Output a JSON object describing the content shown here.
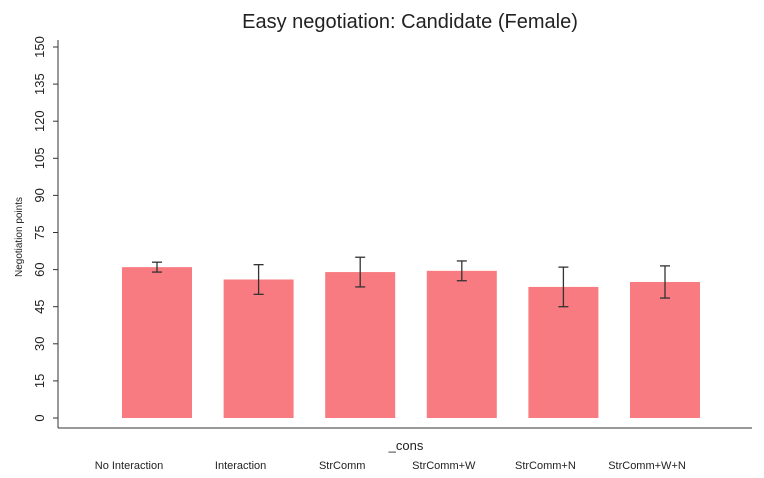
{
  "chart_data": {
    "type": "bar",
    "title": "Easy negotiation: Candidate (Female)",
    "ylabel": "Negotiation points",
    "xlabel": "_cons",
    "categories": [
      "No Interaction",
      "Interaction",
      "StrComm",
      "StrComm+W",
      "StrComm+N",
      "StrComm+W+N"
    ],
    "values": [
      61,
      56,
      59,
      59.5,
      53,
      55
    ],
    "errors": [
      2,
      6,
      6,
      4,
      8,
      6.5
    ],
    "color": "#f77b80",
    "error_color": "#333333",
    "ylim": [
      0,
      150
    ],
    "yticks": [
      0,
      15,
      30,
      45,
      60,
      75,
      90,
      105,
      120,
      135,
      150
    ],
    "grid": false
  }
}
